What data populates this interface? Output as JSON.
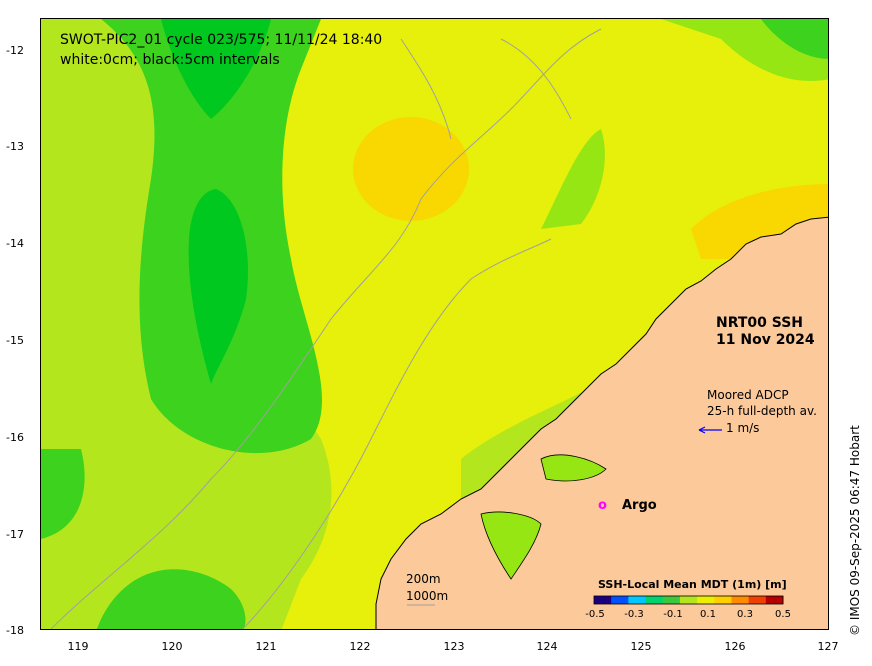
{
  "map": {
    "title_line1": "SWOT-PIC2_01 cycle 023/575; 11/11/24 18:40",
    "title_line2": "white:0cm; black:5cm intervals",
    "product_line1": "NRT00 SSH",
    "product_line2": "11 Nov 2024",
    "adcp_line1": "Moored ADCP",
    "adcp_line2": "25-h full-depth av.",
    "adcp_scale": "1 m/s",
    "argo_symbol": "o",
    "argo_label": "Argo",
    "depth_200": "200m",
    "depth_1000": "1000m",
    "credit": "© IMOS 09-Sep-2025 06:47 Hobart",
    "lon_ticks": [
      "119",
      "120",
      "121",
      "122",
      "123",
      "124",
      "125",
      "126",
      "127"
    ],
    "lat_ticks": [
      "-12",
      "-13",
      "-14",
      "-15",
      "-16",
      "-17",
      "-18"
    ]
  },
  "colorbar": {
    "title": "SSH-Local Mean MDT (1m) [m]",
    "labels": [
      "-0.5",
      "-0.3",
      "-0.1",
      "0.1",
      "0.3",
      "0.5"
    ],
    "colors": [
      "#1a0080",
      "#0050ff",
      "#00c8ff",
      "#00d26e",
      "#3cc83c",
      "#b4e61e",
      "#ebf000",
      "#ffd000",
      "#ff8c00",
      "#f04000",
      "#b40000"
    ]
  },
  "colors": {
    "land": "#fcc99b",
    "ocean_base": "#e6f00a",
    "green_dark": "#00c81e",
    "green_mid": "#3cd21e",
    "green_light": "#96e614",
    "yellow_orange": "#f8d800",
    "argo": "#ff00ff",
    "arrow": "#0000ff"
  }
}
